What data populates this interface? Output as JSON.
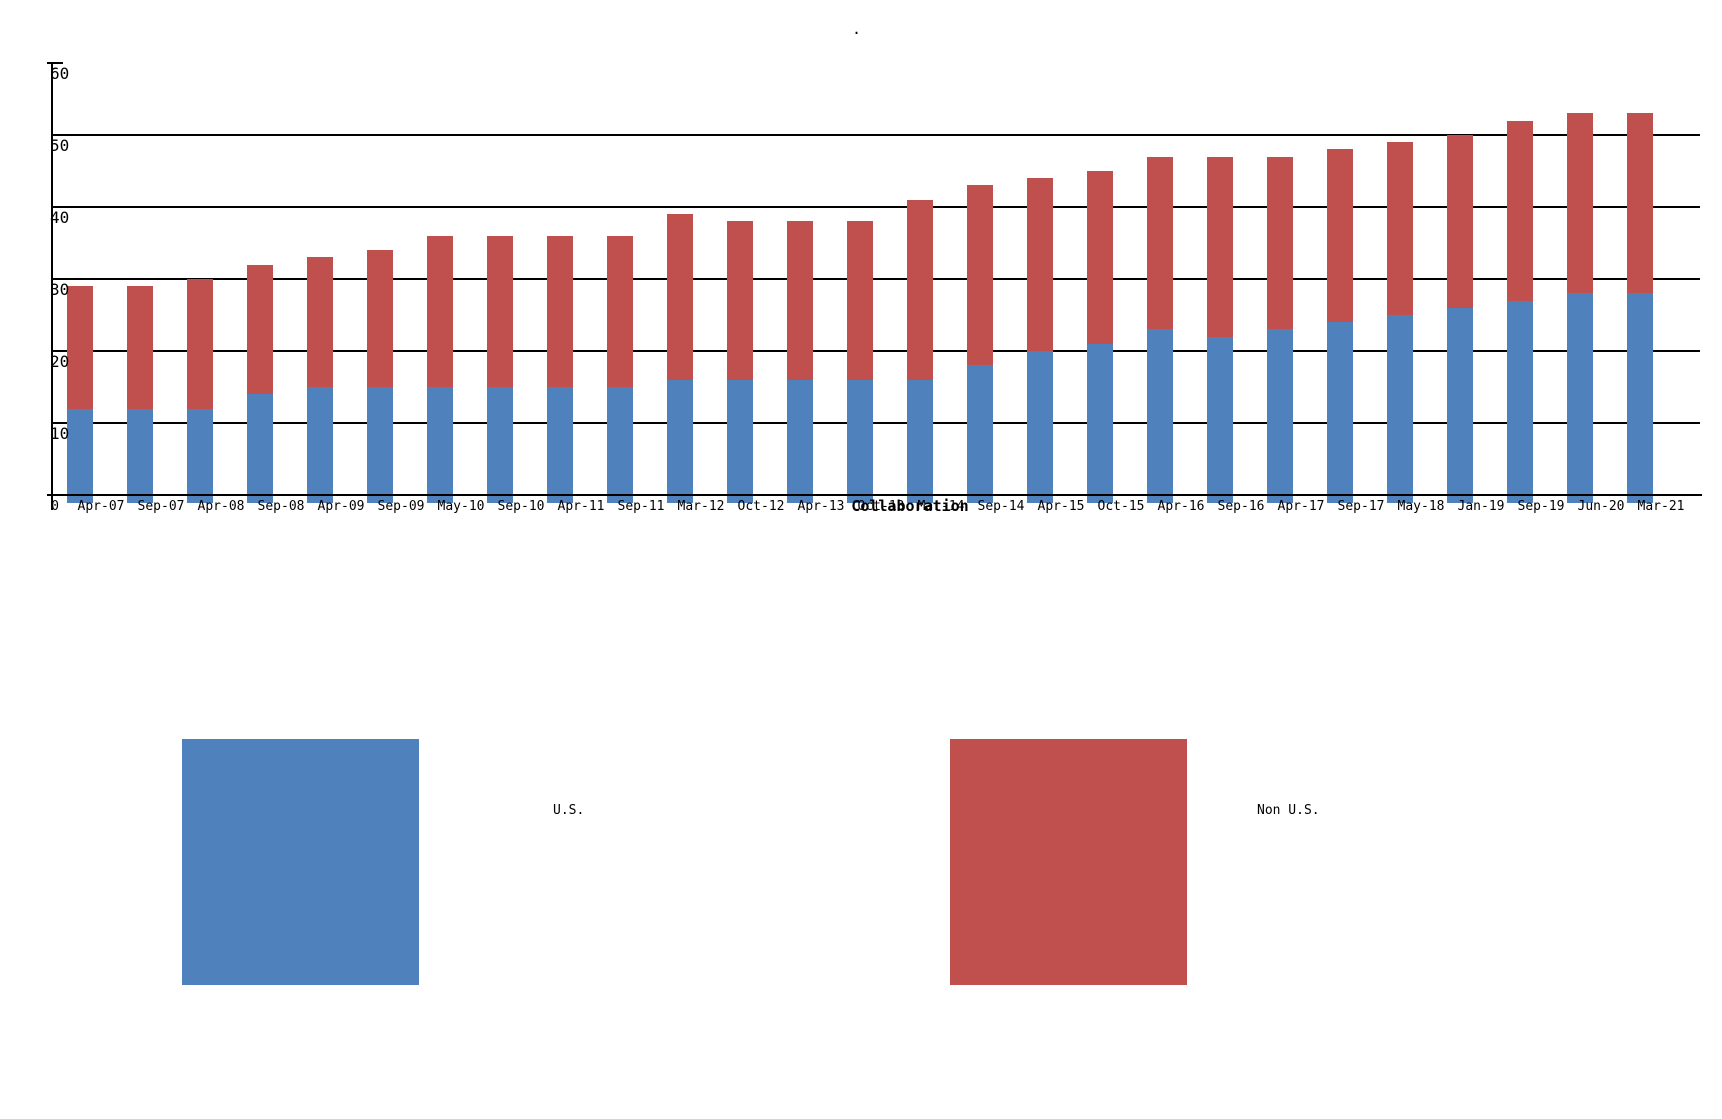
{
  "chart_data": {
    "type": "bar",
    "stacked": true,
    "title": ".",
    "xlabel": "Collaboration",
    "ylabel": "",
    "ylim": [
      0,
      60
    ],
    "yticks": [
      60,
      50,
      40,
      30,
      20,
      10,
      0
    ],
    "grid": true,
    "legend_position": "bottom",
    "categories": [
      "Apr-07",
      "Sep-07",
      "Apr-08",
      "Sep-08",
      "Apr-09",
      "Sep-09",
      "May-10",
      "Sep-10",
      "Apr-11",
      "Sep-11",
      "Mar-12",
      "Oct-12",
      "Apr-13",
      "Oct-13",
      "Mar-14",
      "Sep-14",
      "Apr-15",
      "Oct-15",
      "Apr-16",
      "Sep-16",
      "Apr-17",
      "Sep-17",
      "May-18",
      "Jan-19",
      "Sep-19",
      "Jun-20",
      "Mar-21"
    ],
    "series": [
      {
        "name": "U.S.",
        "color": "#4f81bd",
        "values": [
          12,
          12,
          12,
          14,
          15,
          15,
          15,
          15,
          15,
          15,
          16,
          16,
          16,
          16,
          16,
          18,
          20,
          21,
          23,
          22,
          23,
          24,
          25,
          26,
          27,
          28,
          28
        ]
      },
      {
        "name": "Non U.S.",
        "color": "#c0504d",
        "values": [
          17,
          17,
          18,
          18,
          18,
          19,
          21,
          21,
          21,
          21,
          23,
          22,
          22,
          22,
          25,
          25,
          24,
          24,
          24,
          25,
          24,
          24,
          24,
          24,
          25,
          25,
          25
        ]
      }
    ],
    "totals": [
      29,
      29,
      30,
      32,
      33,
      34,
      36,
      36,
      36,
      36,
      39,
      38,
      38,
      38,
      41,
      43,
      44,
      45,
      47,
      47,
      47,
      48,
      49,
      50,
      52,
      53,
      53
    ]
  },
  "legend": {
    "items": [
      {
        "label": "U.S.",
        "color": "#4f81bd"
      },
      {
        "label": "Non U.S.",
        "color": "#c0504d"
      }
    ]
  }
}
